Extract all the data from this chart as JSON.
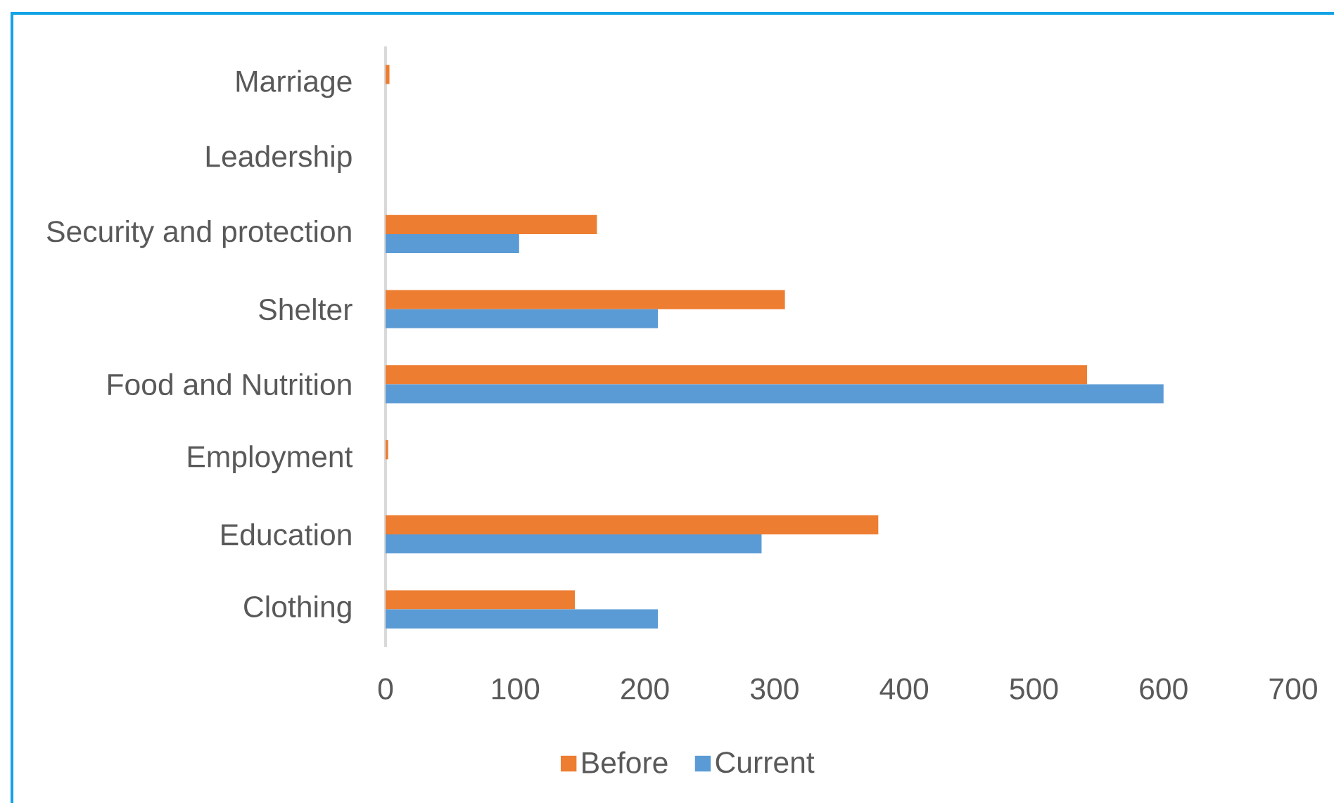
{
  "chart_data": {
    "type": "bar",
    "orientation": "horizontal",
    "categories": [
      "Marriage",
      "Leadership",
      "Security and protection",
      "Shelter",
      "Food and Nutrition",
      "Employment",
      "Education",
      "Clothing"
    ],
    "series": [
      {
        "name": "Before",
        "color": "#ed7d31",
        "values": [
          3,
          0,
          163,
          308,
          541,
          2,
          380,
          146
        ]
      },
      {
        "name": "Current",
        "color": "#5b9bd5",
        "values": [
          0,
          0,
          103,
          210,
          600,
          0,
          290,
          210
        ]
      }
    ],
    "xlim": [
      0,
      700
    ],
    "xticks": [
      0,
      100,
      200,
      300,
      400,
      500,
      600,
      700
    ],
    "legend": "bottom",
    "grid": false
  }
}
